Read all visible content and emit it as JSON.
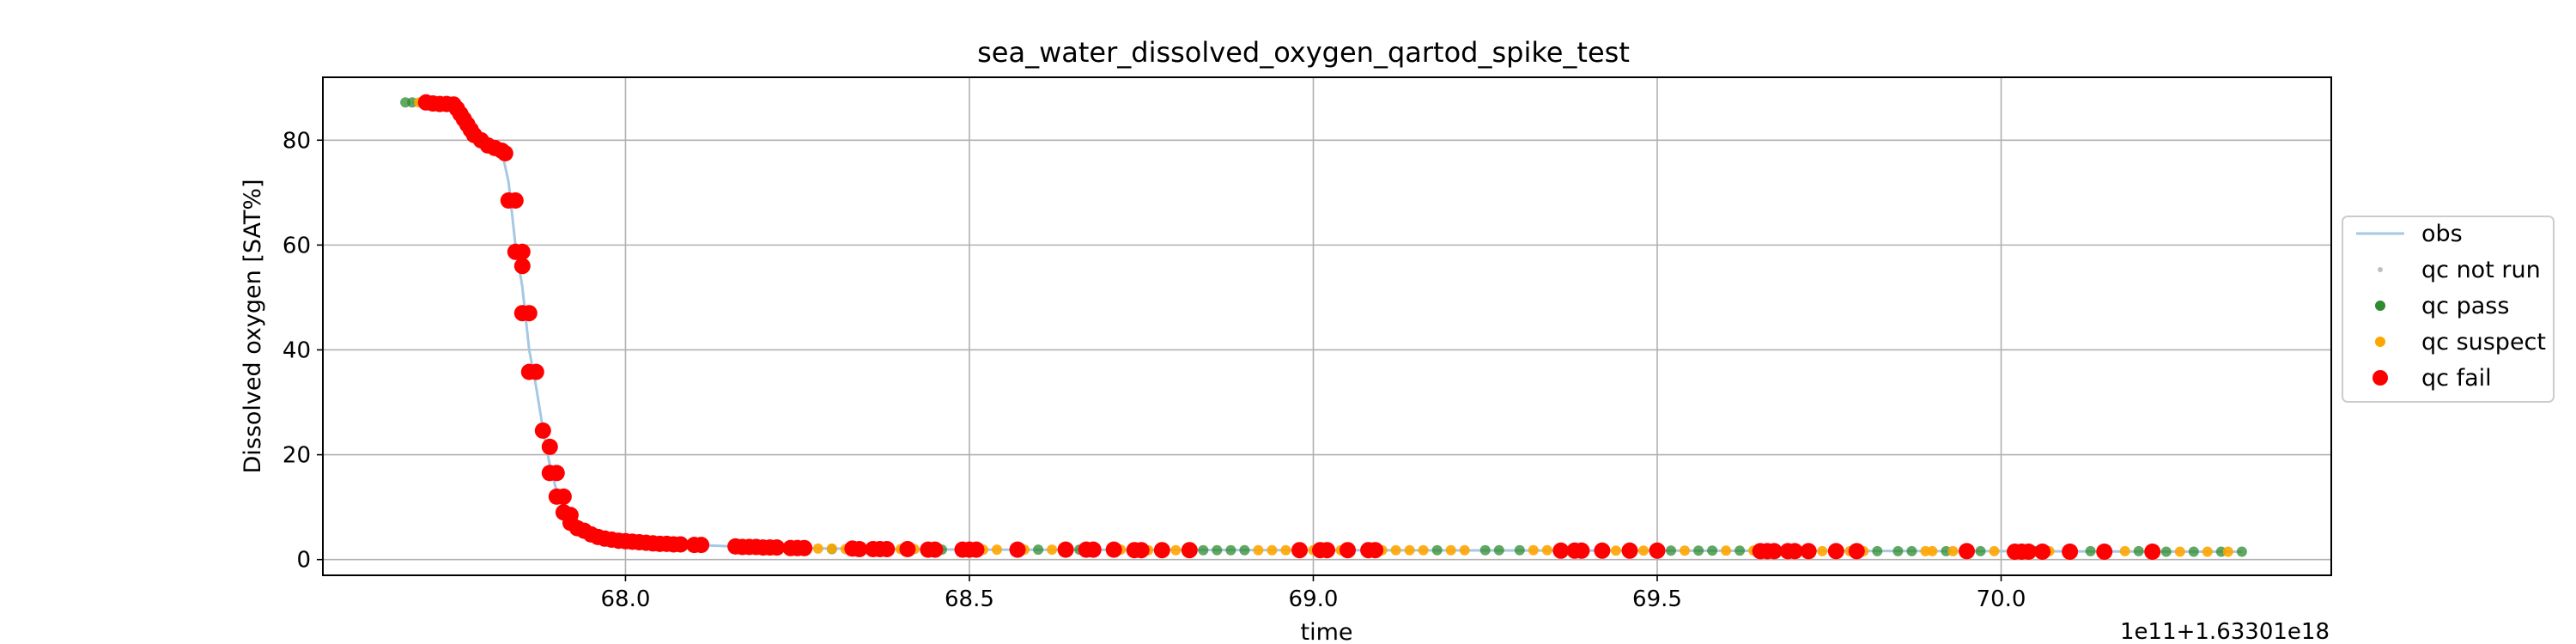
{
  "chart_data": {
    "type": "scatter",
    "title": "sea_water_dissolved_oxygen_qartod_spike_test",
    "xlabel": "time",
    "ylabel": "Dissolved oxygen [SAT%]",
    "x_offset_text": "1e11+1.63301e18",
    "xlim": [
      67.56,
      70.48
    ],
    "ylim": [
      -3,
      92
    ],
    "xticks": [
      "68.0",
      "68.5",
      "69.0",
      "69.5",
      "70.0"
    ],
    "yticks": [
      "0",
      "20",
      "40",
      "60",
      "80"
    ],
    "grid": true,
    "legend_position": "center-right",
    "colors": {
      "obs": "#a6c8e3",
      "qc_not_run": "#bfbfbf",
      "qc_pass": "#2e8b2e",
      "qc_suspect": "#ffa500",
      "qc_fail": "#ff0000"
    },
    "series": [
      {
        "name": "obs",
        "kind": "line",
        "points": [
          [
            67.69,
            87.2
          ],
          [
            67.74,
            87.0
          ],
          [
            67.76,
            85.5
          ],
          [
            67.78,
            82.0
          ],
          [
            67.8,
            79.5
          ],
          [
            67.82,
            78.0
          ],
          [
            67.83,
            72.0
          ],
          [
            67.84,
            60.0
          ],
          [
            67.85,
            52.0
          ],
          [
            67.86,
            40.0
          ],
          [
            67.87,
            33.0
          ],
          [
            67.88,
            25.0
          ],
          [
            67.89,
            18.0
          ],
          [
            67.9,
            13.0
          ],
          [
            67.91,
            9.0
          ],
          [
            67.93,
            6.5
          ],
          [
            67.95,
            5.0
          ],
          [
            67.97,
            4.2
          ],
          [
            68.0,
            3.5
          ],
          [
            68.05,
            3.0
          ],
          [
            68.1,
            2.8
          ],
          [
            68.2,
            2.3
          ],
          [
            68.3,
            2.1
          ],
          [
            68.5,
            1.9
          ],
          [
            69.0,
            1.8
          ],
          [
            69.5,
            1.7
          ],
          [
            70.0,
            1.6
          ],
          [
            70.35,
            1.5
          ]
        ]
      },
      {
        "name": "qc not run",
        "kind": "points",
        "points": []
      },
      {
        "name": "qc pass",
        "kind": "points",
        "points": [
          [
            67.68,
            87.2
          ],
          [
            67.69,
            87.2
          ],
          [
            68.3,
            2.0
          ],
          [
            68.36,
            2.0
          ],
          [
            68.46,
            1.9
          ],
          [
            68.6,
            1.9
          ],
          [
            68.66,
            1.9
          ],
          [
            68.84,
            1.8
          ],
          [
            68.86,
            1.8
          ],
          [
            68.88,
            1.8
          ],
          [
            68.9,
            1.8
          ],
          [
            69.18,
            1.8
          ],
          [
            69.25,
            1.8
          ],
          [
            69.27,
            1.8
          ],
          [
            69.3,
            1.8
          ],
          [
            69.52,
            1.7
          ],
          [
            69.56,
            1.7
          ],
          [
            69.58,
            1.7
          ],
          [
            69.62,
            1.7
          ],
          [
            69.82,
            1.6
          ],
          [
            69.85,
            1.6
          ],
          [
            69.87,
            1.6
          ],
          [
            69.92,
            1.6
          ],
          [
            69.95,
            1.6
          ],
          [
            69.97,
            1.6
          ],
          [
            70.05,
            1.6
          ],
          [
            70.1,
            1.6
          ],
          [
            70.13,
            1.6
          ],
          [
            70.2,
            1.6
          ],
          [
            70.24,
            1.5
          ],
          [
            70.28,
            1.5
          ],
          [
            70.32,
            1.5
          ],
          [
            70.35,
            1.5
          ]
        ]
      },
      {
        "name": "qc suspect",
        "kind": "points",
        "points": [
          [
            67.7,
            87.2
          ],
          [
            68.26,
            2.1
          ],
          [
            68.28,
            2.1
          ],
          [
            68.3,
            2.1
          ],
          [
            68.32,
            2.0
          ],
          [
            68.34,
            2.0
          ],
          [
            68.38,
            2.0
          ],
          [
            68.4,
            2.0
          ],
          [
            68.42,
            2.0
          ],
          [
            68.44,
            1.9
          ],
          [
            68.52,
            1.9
          ],
          [
            68.54,
            1.9
          ],
          [
            68.58,
            1.9
          ],
          [
            68.62,
            1.9
          ],
          [
            68.68,
            1.9
          ],
          [
            68.72,
            1.9
          ],
          [
            68.76,
            1.8
          ],
          [
            68.8,
            1.8
          ],
          [
            68.92,
            1.8
          ],
          [
            68.94,
            1.8
          ],
          [
            68.96,
            1.8
          ],
          [
            69.0,
            1.8
          ],
          [
            69.04,
            1.8
          ],
          [
            69.1,
            1.8
          ],
          [
            69.12,
            1.8
          ],
          [
            69.14,
            1.8
          ],
          [
            69.16,
            1.8
          ],
          [
            69.2,
            1.8
          ],
          [
            69.22,
            1.8
          ],
          [
            69.32,
            1.8
          ],
          [
            69.34,
            1.8
          ],
          [
            69.42,
            1.7
          ],
          [
            69.44,
            1.7
          ],
          [
            69.48,
            1.7
          ],
          [
            69.5,
            1.7
          ],
          [
            69.54,
            1.7
          ],
          [
            69.6,
            1.7
          ],
          [
            69.64,
            1.7
          ],
          [
            69.74,
            1.6
          ],
          [
            69.76,
            1.6
          ],
          [
            69.78,
            1.6
          ],
          [
            69.8,
            1.6
          ],
          [
            69.89,
            1.6
          ],
          [
            69.9,
            1.6
          ],
          [
            69.93,
            1.6
          ],
          [
            69.99,
            1.6
          ],
          [
            70.07,
            1.6
          ],
          [
            70.15,
            1.6
          ],
          [
            70.18,
            1.6
          ],
          [
            70.22,
            1.5
          ],
          [
            70.26,
            1.5
          ],
          [
            70.3,
            1.5
          ],
          [
            70.33,
            1.5
          ]
        ]
      },
      {
        "name": "qc fail",
        "kind": "points",
        "points": [
          [
            67.71,
            87.2
          ],
          [
            67.72,
            87.0
          ],
          [
            67.73,
            86.9
          ],
          [
            67.74,
            86.9
          ],
          [
            67.75,
            86.8
          ],
          [
            67.755,
            86.0
          ],
          [
            67.76,
            85.0
          ],
          [
            67.765,
            84.0
          ],
          [
            67.77,
            83.0
          ],
          [
            67.775,
            82.0
          ],
          [
            67.78,
            81.0
          ],
          [
            67.79,
            80.0
          ],
          [
            67.8,
            79.0
          ],
          [
            67.81,
            78.5
          ],
          [
            67.82,
            78.0
          ],
          [
            67.825,
            77.5
          ],
          [
            67.83,
            68.5
          ],
          [
            67.84,
            68.5
          ],
          [
            67.84,
            58.7
          ],
          [
            67.85,
            58.7
          ],
          [
            67.85,
            56.0
          ],
          [
            67.85,
            47.0
          ],
          [
            67.86,
            47.0
          ],
          [
            67.86,
            35.8
          ],
          [
            67.87,
            35.8
          ],
          [
            67.88,
            24.6
          ],
          [
            67.89,
            21.5
          ],
          [
            67.89,
            16.5
          ],
          [
            67.9,
            16.5
          ],
          [
            67.9,
            12.0
          ],
          [
            67.91,
            12.0
          ],
          [
            67.91,
            9.0
          ],
          [
            67.92,
            8.5
          ],
          [
            67.92,
            7.0
          ],
          [
            67.93,
            6.0
          ],
          [
            67.94,
            5.5
          ],
          [
            67.95,
            4.8
          ],
          [
            67.96,
            4.3
          ],
          [
            67.97,
            4.0
          ],
          [
            67.98,
            3.8
          ],
          [
            67.99,
            3.6
          ],
          [
            68.0,
            3.5
          ],
          [
            68.01,
            3.4
          ],
          [
            68.02,
            3.3
          ],
          [
            68.03,
            3.2
          ],
          [
            68.04,
            3.1
          ],
          [
            68.05,
            3.0
          ],
          [
            68.06,
            3.0
          ],
          [
            68.07,
            2.9
          ],
          [
            68.08,
            2.9
          ],
          [
            68.1,
            2.8
          ],
          [
            68.11,
            2.8
          ],
          [
            68.16,
            2.5
          ],
          [
            68.17,
            2.4
          ],
          [
            68.18,
            2.4
          ],
          [
            68.19,
            2.4
          ],
          [
            68.2,
            2.3
          ],
          [
            68.21,
            2.3
          ],
          [
            68.22,
            2.3
          ],
          [
            68.24,
            2.2
          ],
          [
            68.25,
            2.2
          ],
          [
            68.26,
            2.2
          ],
          [
            68.33,
            2.1
          ],
          [
            68.34,
            2.0
          ],
          [
            68.36,
            2.0
          ],
          [
            68.37,
            2.0
          ],
          [
            68.38,
            2.0
          ],
          [
            68.41,
            2.0
          ],
          [
            68.44,
            1.9
          ],
          [
            68.45,
            1.9
          ],
          [
            68.49,
            1.9
          ],
          [
            68.5,
            1.9
          ],
          [
            68.51,
            1.9
          ],
          [
            68.57,
            1.9
          ],
          [
            68.64,
            1.9
          ],
          [
            68.67,
            1.9
          ],
          [
            68.68,
            1.9
          ],
          [
            68.71,
            1.9
          ],
          [
            68.74,
            1.8
          ],
          [
            68.75,
            1.8
          ],
          [
            68.78,
            1.8
          ],
          [
            68.82,
            1.8
          ],
          [
            68.98,
            1.8
          ],
          [
            69.01,
            1.8
          ],
          [
            69.02,
            1.8
          ],
          [
            69.05,
            1.8
          ],
          [
            69.08,
            1.8
          ],
          [
            69.09,
            1.8
          ],
          [
            69.36,
            1.7
          ],
          [
            69.38,
            1.7
          ],
          [
            69.39,
            1.7
          ],
          [
            69.42,
            1.7
          ],
          [
            69.46,
            1.7
          ],
          [
            69.5,
            1.7
          ],
          [
            69.65,
            1.6
          ],
          [
            69.66,
            1.6
          ],
          [
            69.67,
            1.6
          ],
          [
            69.69,
            1.6
          ],
          [
            69.7,
            1.6
          ],
          [
            69.72,
            1.6
          ],
          [
            69.76,
            1.6
          ],
          [
            69.79,
            1.6
          ],
          [
            69.95,
            1.6
          ],
          [
            70.02,
            1.5
          ],
          [
            70.03,
            1.5
          ],
          [
            70.04,
            1.5
          ],
          [
            70.06,
            1.5
          ],
          [
            70.1,
            1.5
          ],
          [
            70.15,
            1.5
          ],
          [
            70.22,
            1.5
          ]
        ]
      }
    ],
    "legend": [
      {
        "label": "obs",
        "marker": "line",
        "color": "#a6c8e3"
      },
      {
        "label": "qc not run",
        "marker": "dot-small",
        "color": "#bfbfbf"
      },
      {
        "label": "qc pass",
        "marker": "dot",
        "color": "#2e8b2e"
      },
      {
        "label": "qc suspect",
        "marker": "dot",
        "color": "#ffa500"
      },
      {
        "label": "qc fail",
        "marker": "dot-large",
        "color": "#ff0000"
      }
    ]
  }
}
